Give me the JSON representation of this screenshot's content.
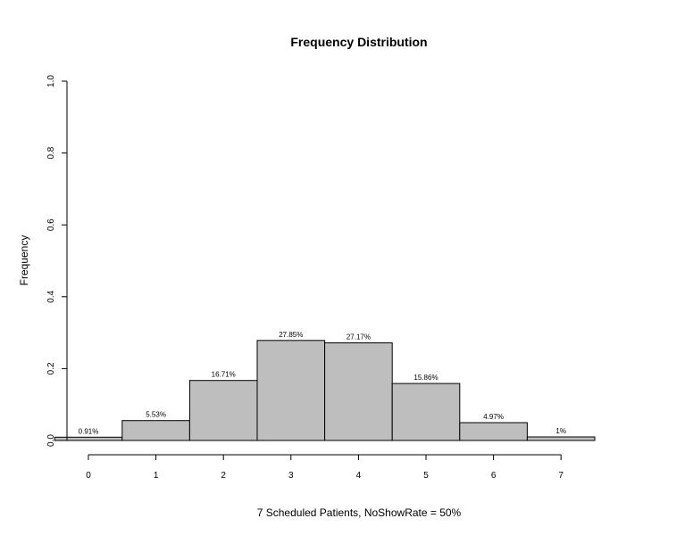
{
  "chart_data": {
    "type": "bar",
    "title": "Frequency Distribution",
    "xlabel": "7 Scheduled Patients,  NoShowRate = 50%",
    "ylabel": "Frequency",
    "categories": [
      "0",
      "1",
      "2",
      "3",
      "4",
      "5",
      "6",
      "7"
    ],
    "values": [
      0.0091,
      0.0553,
      0.1671,
      0.2785,
      0.2717,
      0.1586,
      0.0497,
      0.01
    ],
    "data_labels": [
      "0.91%",
      "5.53%",
      "16.71%",
      "27.85%",
      "27.17%",
      "15.86%",
      "4.97%",
      "1%"
    ],
    "yticks": [
      "0.0",
      "0.2",
      "0.4",
      "0.6",
      "0.8",
      "1.0"
    ],
    "ylim": [
      0,
      1
    ],
    "grid": false,
    "legend": "none",
    "bar_color": "#bebebe"
  }
}
